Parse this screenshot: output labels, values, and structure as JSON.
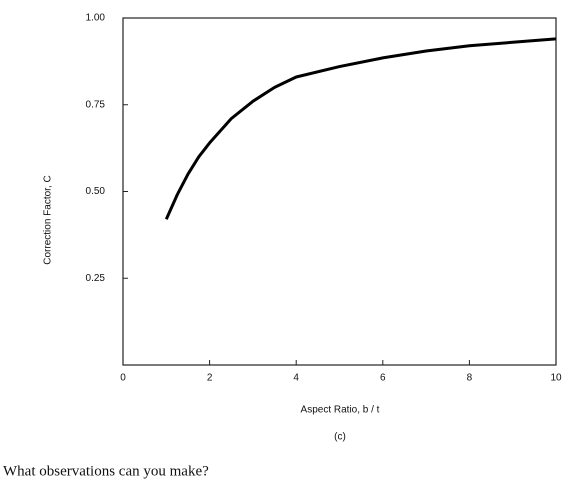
{
  "chart_data": {
    "type": "line",
    "x_label": "Aspect Ratio, b / t",
    "y_label": "Correction Factor, C",
    "caption": "(c)",
    "x": [
      1,
      1.25,
      1.5,
      1.75,
      2,
      2.5,
      3,
      3.5,
      4,
      5,
      6,
      7,
      8,
      9,
      10
    ],
    "series": [
      {
        "color": "#000000",
        "values": [
          0.42,
          0.49,
          0.55,
          0.6,
          0.64,
          0.71,
          0.76,
          0.8,
          0.83,
          0.86,
          0.885,
          0.905,
          0.92,
          0.93,
          0.94
        ]
      }
    ],
    "xlim": [
      0,
      10
    ],
    "ylim": [
      0,
      1.0
    ],
    "xticks": [
      0,
      2,
      4,
      6,
      8,
      10
    ],
    "yticks": [
      0.25,
      {
        "value": 0.5,
        "label": "0.50"
      },
      0.75,
      {
        "value": 1.0,
        "label": "1.00"
      }
    ]
  },
  "question": "What observations can you make?"
}
